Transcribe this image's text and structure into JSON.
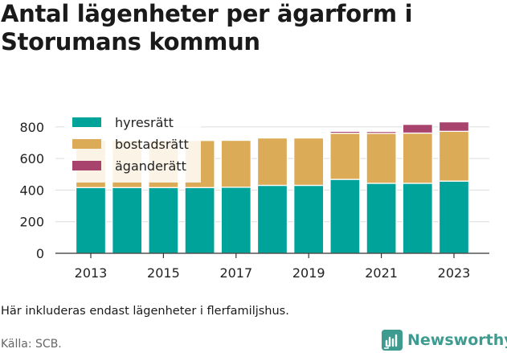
{
  "title": "Antal lägenheter per ägarform i Storumans kommun",
  "note": "Här inkluderas endast lägenheter i flerfamiljshus.",
  "source": "Källa: SCB.",
  "brand": {
    "name": "Newsworthy",
    "icon": "newsworthy-logo-icon",
    "color": "#3d9b8f"
  },
  "chart_data": {
    "type": "bar",
    "stacked": true,
    "categories": [
      "2013",
      "2014",
      "2015",
      "2016",
      "2017",
      "2018",
      "2019",
      "2020",
      "2021",
      "2022",
      "2023"
    ],
    "x_tick_labels": [
      "2013",
      "2015",
      "2017",
      "2019",
      "2021",
      "2023"
    ],
    "y_ticks": [
      0,
      200,
      400,
      600,
      800
    ],
    "ylim": [
      0,
      850
    ],
    "grid": true,
    "legend_position": "top-left",
    "series": [
      {
        "name": "hyresrätt",
        "color": "#00a39a",
        "values": [
          416,
          416,
          416,
          416,
          418,
          430,
          430,
          468,
          443,
          443,
          457
        ]
      },
      {
        "name": "bostadsrätt",
        "color": "#dbab57",
        "values": [
          300,
          300,
          298,
          298,
          297,
          300,
          300,
          292,
          316,
          318,
          315
        ]
      },
      {
        "name": "äganderätt",
        "color": "#a8436d",
        "values": [
          0,
          0,
          0,
          0,
          0,
          0,
          0,
          12,
          12,
          55,
          60
        ]
      }
    ]
  }
}
